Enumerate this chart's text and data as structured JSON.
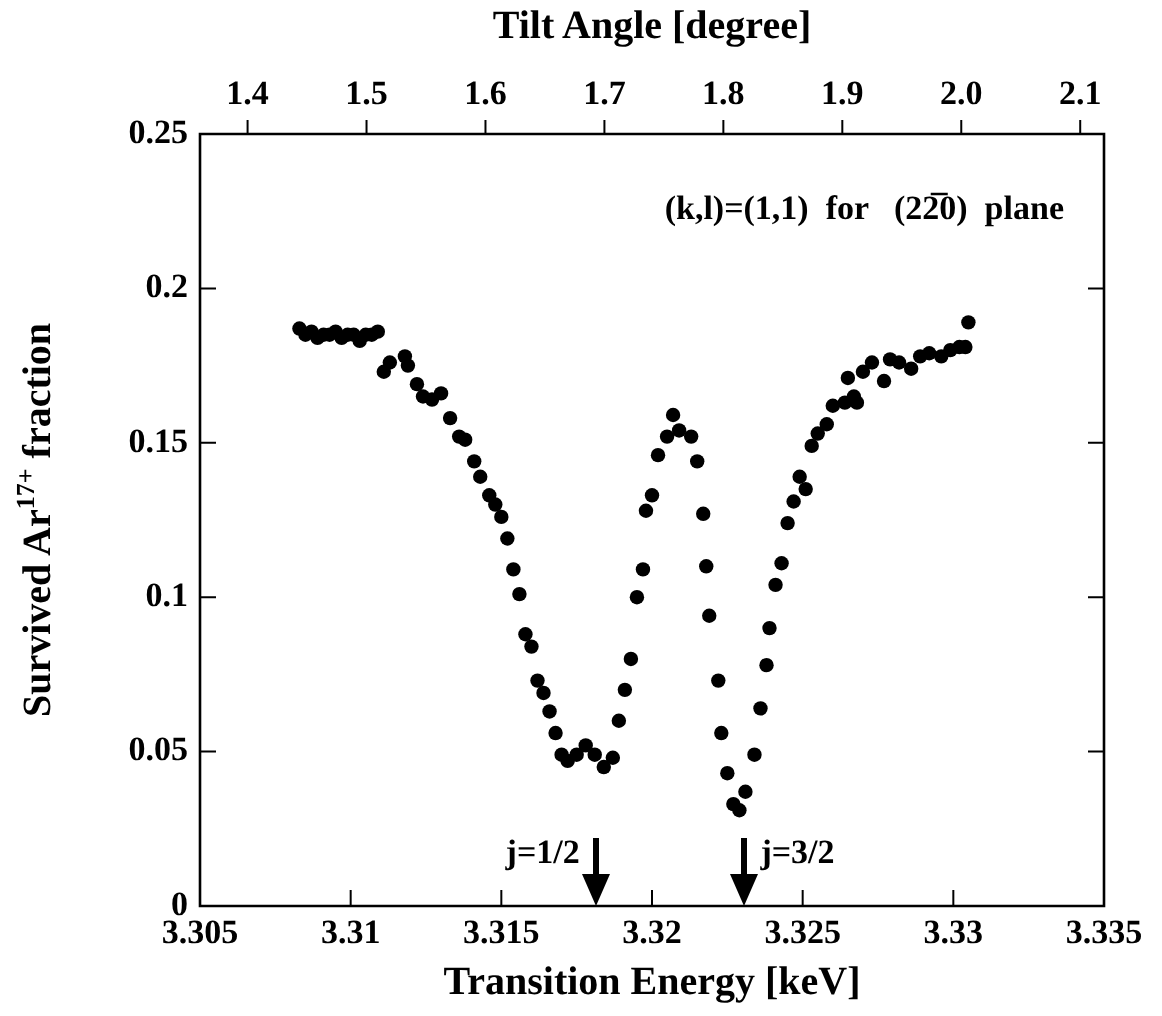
{
  "chart_data": {
    "type": "scatter",
    "xlabel": "Transition Energy [keV]",
    "ylabel": "Survived Ar$^{17+}$ fraction",
    "x2label": "Tilt Angle [degree]",
    "xlim": [
      3.305,
      3.335
    ],
    "xticks": [
      3.305,
      3.31,
      3.315,
      3.32,
      3.325,
      3.33,
      3.335
    ],
    "ylim": [
      0,
      0.25
    ],
    "yticks": [
      0,
      0.05,
      0.1,
      0.15,
      0.2,
      0.25
    ],
    "x2lim": [
      1.36,
      2.12
    ],
    "x2ticks": [
      1.4,
      1.5,
      1.6,
      1.7,
      1.8,
      1.9,
      {
        "value": 2,
        "label": "2.0"
      },
      2.1
    ],
    "marker": "circle",
    "annotations": [
      "(k,l)=(1,1)  for   (22̅0)  plane",
      "j=1/2",
      "j=3/2"
    ],
    "series": [
      {
        "color": "#000000",
        "x": [
          3.3083,
          3.3085,
          3.3087,
          3.3089,
          3.3091,
          3.3093,
          3.3095,
          3.3097,
          3.3099,
          3.3101,
          3.3103,
          3.3105,
          3.3107,
          3.3109,
          3.3111,
          3.3113,
          3.3118,
          3.3119,
          3.3122,
          3.3124,
          3.3127,
          3.313,
          3.3133,
          3.3136,
          3.3138,
          3.3141,
          3.3143,
          3.3146,
          3.3148,
          3.315,
          3.3152,
          3.3154,
          3.3156,
          3.3158,
          3.316,
          3.3162,
          3.3164,
          3.3166,
          3.3168,
          3.317,
          3.3172,
          3.3175,
          3.3178,
          3.3181,
          3.3184,
          3.3187,
          3.3189,
          3.3191,
          3.3193,
          3.3195,
          3.3197,
          3.3198,
          3.32,
          3.3202,
          3.3205,
          3.3207,
          3.3209,
          3.3213,
          3.3215,
          3.3217,
          3.3218,
          3.3219,
          3.3222,
          3.3223,
          3.3225,
          3.3227,
          3.3229,
          3.3231,
          3.3234,
          3.3236,
          3.3238,
          3.3239,
          3.3241,
          3.3243,
          3.3245,
          3.3247,
          3.3249,
          3.3251,
          3.3253,
          3.3255,
          3.3258,
          3.326,
          3.3264,
          3.3265,
          3.3267,
          3.3268,
          3.327,
          3.3273,
          3.3277,
          3.3279,
          3.3282,
          3.3286,
          3.3289,
          3.3292,
          3.3296,
          3.3299,
          3.3302,
          3.3304,
          3.3305
        ],
        "values": [
          0.187,
          0.185,
          0.186,
          0.184,
          0.185,
          0.185,
          0.186,
          0.184,
          0.185,
          0.185,
          0.183,
          0.185,
          0.185,
          0.186,
          0.173,
          0.176,
          0.178,
          0.175,
          0.169,
          0.165,
          0.164,
          0.166,
          0.158,
          0.152,
          0.151,
          0.144,
          0.139,
          0.133,
          0.13,
          0.126,
          0.119,
          0.109,
          0.101,
          0.088,
          0.084,
          0.073,
          0.069,
          0.063,
          0.056,
          0.049,
          0.047,
          0.049,
          0.052,
          0.049,
          0.045,
          0.048,
          0.06,
          0.07,
          0.08,
          0.1,
          0.109,
          0.128,
          0.133,
          0.146,
          0.152,
          0.159,
          0.154,
          0.152,
          0.144,
          0.127,
          0.11,
          0.094,
          0.073,
          0.056,
          0.043,
          0.033,
          0.031,
          0.037,
          0.049,
          0.064,
          0.078,
          0.09,
          0.104,
          0.111,
          0.124,
          0.131,
          0.139,
          0.135,
          0.149,
          0.153,
          0.156,
          0.162,
          0.163,
          0.171,
          0.165,
          0.163,
          0.173,
          0.176,
          0.17,
          0.177,
          0.176,
          0.174,
          0.178,
          0.179,
          0.178,
          0.18,
          0.181,
          0.181,
          0.189
        ]
      }
    ]
  }
}
